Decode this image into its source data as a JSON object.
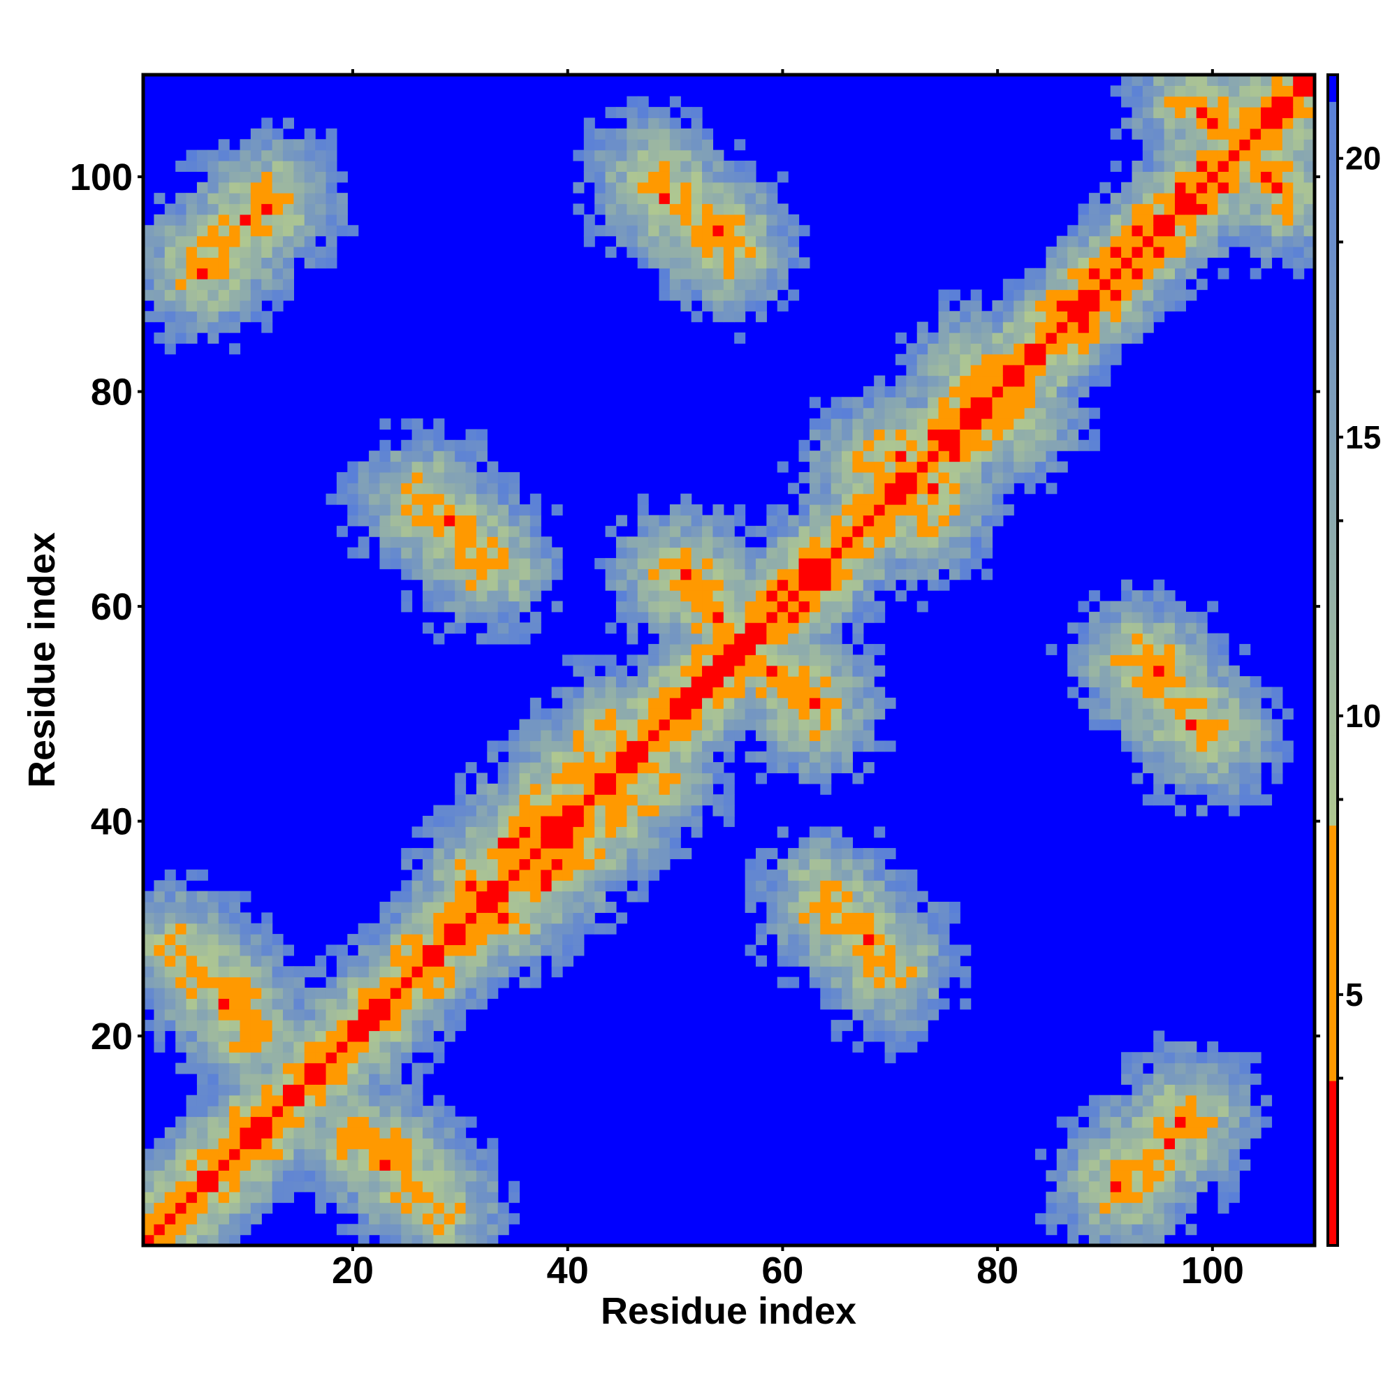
{
  "chart_data": {
    "type": "heatmap",
    "title": "",
    "xlabel": "Residue index",
    "ylabel": "Residue index",
    "n_residues": 109,
    "xlim": [
      1,
      109
    ],
    "ylim": [
      1,
      109
    ],
    "x_ticks": [
      20,
      40,
      60,
      80,
      100
    ],
    "y_ticks": [
      20,
      40,
      60,
      80,
      100
    ],
    "colorbar": {
      "ticks": [
        5,
        10,
        15,
        20
      ],
      "range": [
        0.5,
        21.5
      ],
      "cutoff": 8,
      "colors": {
        "contact_low": "#ff0000",
        "contact_high": "#ff9900",
        "near": "#b0c890",
        "far_edge": "#5a80d8",
        "background": "#0000ff"
      }
    },
    "contact_features": [
      {
        "type": "diagonal",
        "description": "main diagonal i=j",
        "range": [
          1,
          109
        ]
      },
      {
        "type": "antiparallel",
        "from": [
          5,
          27
        ],
        "to": [
          11,
          20
        ]
      },
      {
        "type": "antiparallel",
        "from": [
          22,
          10
        ],
        "to": [
          28,
          4
        ]
      },
      {
        "type": "antiparallel",
        "from": [
          6,
          92
        ],
        "to": [
          12,
          98
        ]
      },
      {
        "type": "antiparallel",
        "from": [
          48,
          100
        ],
        "to": [
          55,
          94
        ]
      },
      {
        "type": "antiparallel",
        "from": [
          27,
          70
        ],
        "to": [
          33,
          64
        ]
      },
      {
        "type": "antiparallel",
        "from": [
          51,
          63
        ],
        "to": [
          56,
          57
        ]
      },
      {
        "type": "antiparallel",
        "from": [
          57,
          56
        ],
        "to": [
          63,
          50
        ]
      },
      {
        "type": "antiparallel",
        "from": [
          64,
          32
        ],
        "to": [
          70,
          26
        ]
      },
      {
        "type": "antiparallel",
        "from": [
          93,
          55
        ],
        "to": [
          99,
          48
        ]
      },
      {
        "type": "antiparallel",
        "from": [
          91,
          6
        ],
        "to": [
          98,
          13
        ]
      },
      {
        "type": "antiparallel",
        "from": [
          98,
          107
        ],
        "to": [
          106,
          99
        ]
      },
      {
        "type": "parallel",
        "from": [
          31,
          34
        ],
        "to": [
          44,
          48
        ]
      },
      {
        "type": "parallel",
        "from": [
          34,
          31
        ],
        "to": [
          48,
          44
        ]
      },
      {
        "type": "parallel",
        "from": [
          68,
          73
        ],
        "to": [
          82,
          78
        ]
      }
    ]
  }
}
